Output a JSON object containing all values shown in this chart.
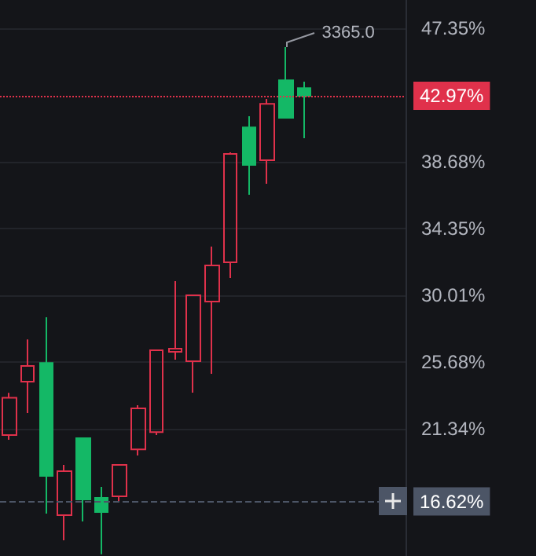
{
  "chart_data": {
    "type": "candlestick",
    "categories": [
      null,
      null,
      null,
      null,
      null,
      null,
      null,
      null,
      null,
      null,
      null,
      null,
      null,
      null,
      null,
      null,
      null,
      null,
      null,
      null,
      null,
      null
    ],
    "ohlc": [
      [
        20.93,
        23.68,
        20.63,
        23.36
      ],
      [
        24.4,
        27.15,
        22.36,
        25.42
      ],
      [
        25.62,
        28.58,
        15.83,
        18.28
      ],
      [
        15.73,
        19.0,
        14.1,
        18.59
      ],
      [
        20.73,
        20.73,
        15.32,
        16.75
      ],
      [
        16.85,
        17.57,
        13.2,
        15.93
      ],
      [
        16.95,
        18.99,
        16.55,
        18.99
      ],
      [
        20.01,
        22.87,
        19.61,
        22.67
      ],
      [
        21.13,
        26.44,
        20.93,
        26.44
      ],
      [
        26.34,
        30.93,
        25.83,
        26.54
      ],
      [
        25.73,
        30.01,
        23.69,
        30.01
      ],
      [
        29.6,
        33.17,
        24.91,
        31.95
      ],
      [
        32.15,
        39.29,
        31.13,
        39.19
      ],
      [
        40.92,
        41.64,
        36.54,
        38.48
      ],
      [
        38.78,
        42.76,
        37.25,
        42.45
      ],
      [
        43.98,
        46.13,
        41.54,
        41.54
      ],
      [
        43.47,
        43.88,
        40.21,
        42.97
      ],
      null,
      null,
      null,
      null,
      null
    ],
    "colors": [
      "#e0314b",
      "#e0314b",
      "#14b866",
      "#e0314b",
      "#14b866",
      "#14b866",
      "#e0314b",
      "#e0314b",
      "#e0314b",
      "#e0314b",
      "#e0314b",
      "#e0314b",
      "#e0314b",
      "#14b866",
      "#e0314b",
      "#14b866",
      "#14b866",
      null,
      null,
      null,
      null,
      null
    ],
    "ylim": [
      13.08,
      49.19
    ],
    "yticks": [
      {
        "value": 21.34,
        "label": "21.34%"
      },
      {
        "value": 25.68,
        "label": "25.68%"
      },
      {
        "value": 30.01,
        "label": "30.01%"
      },
      {
        "value": 34.35,
        "label": "34.35%"
      },
      {
        "value": 38.68,
        "label": "38.68%"
      },
      {
        "value": 47.35,
        "label": "47.35%"
      }
    ],
    "ref_lines": [
      {
        "axis": "y",
        "value": 42.97,
        "label": "42.97%",
        "color": "#e0314b",
        "line_style": "dotted"
      },
      {
        "axis": "y",
        "value": 16.62,
        "label": "16.62%",
        "color": "#4c5566",
        "line_style": "dashed"
      }
    ],
    "annotations": [
      "3365.0"
    ],
    "grid": "y",
    "tick_labels": "y"
  }
}
